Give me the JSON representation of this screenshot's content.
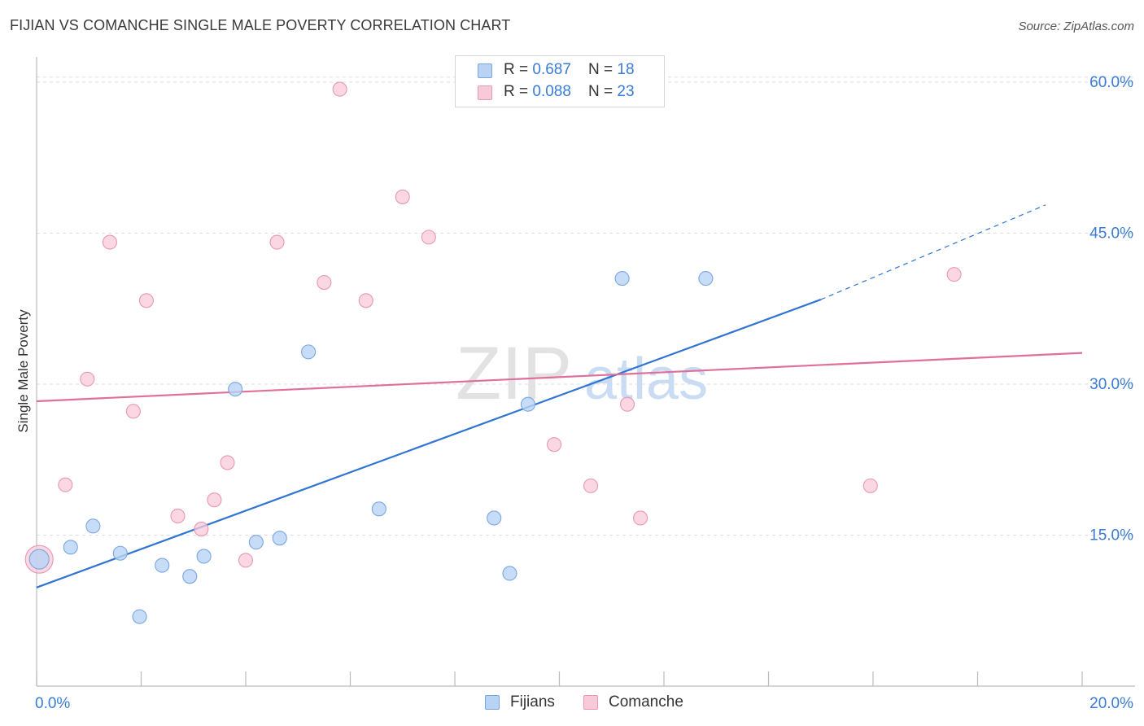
{
  "header": {
    "title": "FIJIAN VS COMANCHE SINGLE MALE POVERTY CORRELATION CHART",
    "source": "Source: ZipAtlas.com"
  },
  "legend": {
    "rows": [
      {
        "r_label": "R = ",
        "r_value": "0.687",
        "n_label": "N = ",
        "n_value": "18"
      },
      {
        "r_label": "R = ",
        "r_value": "0.088",
        "n_label": "N = ",
        "n_value": "23"
      }
    ]
  },
  "bottom_legend": {
    "items": [
      "Fijians",
      "Comanche"
    ]
  },
  "watermark": {
    "zip": "ZIP",
    "atlas": "atlas"
  },
  "colors": {
    "blue_fill": "#b9d3f5",
    "blue_stroke": "#7aa6e0",
    "blue_line": "#2f75d1",
    "pink_fill": "#f8c9d8",
    "pink_stroke": "#e898b4",
    "pink_line": "#e07099",
    "tick_label": "#3a7bd5",
    "grid": "#dddddd",
    "axis": "#bbbbbb"
  },
  "chart_data": {
    "type": "scatter",
    "title": "FIJIAN VS COMANCHE SINGLE MALE POVERTY CORRELATION CHART",
    "xlabel": "",
    "ylabel": "Single Male Poverty",
    "xlim": [
      0,
      20
    ],
    "ylim": [
      0,
      62.5
    ],
    "x_tick_labels": [
      {
        "x": 0,
        "label": "0.0%"
      },
      {
        "x": 20,
        "label": "20.0%"
      }
    ],
    "x_minor_ticks": [
      0,
      2,
      4,
      6,
      8,
      10,
      12,
      14,
      16,
      18,
      20
    ],
    "y_ticks": [
      {
        "y": 15,
        "label": "15.0%"
      },
      {
        "y": 30,
        "label": "30.0%"
      },
      {
        "y": 45,
        "label": "45.0%"
      },
      {
        "y": 60,
        "label": "60.0%"
      }
    ],
    "series": [
      {
        "name": "Fijians",
        "color": "#7aa6e0",
        "points": [
          [
            0.05,
            12.6
          ],
          [
            0.65,
            13.8
          ],
          [
            1.08,
            15.9
          ],
          [
            1.6,
            13.2
          ],
          [
            1.97,
            6.9
          ],
          [
            2.4,
            12.0
          ],
          [
            2.93,
            10.9
          ],
          [
            3.2,
            12.9
          ],
          [
            3.8,
            29.5
          ],
          [
            4.2,
            14.3
          ],
          [
            4.65,
            14.7
          ],
          [
            5.2,
            33.2
          ],
          [
            6.55,
            17.6
          ],
          [
            8.75,
            16.7
          ],
          [
            9.05,
            11.2
          ],
          [
            9.4,
            28.0
          ],
          [
            11.2,
            40.5
          ],
          [
            12.8,
            40.5
          ]
        ],
        "trend": {
          "x0": 0,
          "y0": 9.8,
          "x1": 15.0,
          "y1": 38.4,
          "dash_x1": 19.3,
          "dash_y1": 47.8
        }
      },
      {
        "name": "Comanche",
        "color": "#e898b4",
        "points": [
          [
            0.05,
            12.6
          ],
          [
            0.55,
            20.0
          ],
          [
            0.97,
            30.5
          ],
          [
            1.4,
            44.1
          ],
          [
            1.85,
            27.3
          ],
          [
            2.1,
            38.3
          ],
          [
            2.7,
            16.9
          ],
          [
            3.15,
            15.6
          ],
          [
            3.4,
            18.5
          ],
          [
            3.65,
            22.2
          ],
          [
            4.0,
            12.5
          ],
          [
            4.6,
            44.1
          ],
          [
            5.5,
            40.1
          ],
          [
            5.8,
            59.3
          ],
          [
            6.3,
            38.3
          ],
          [
            7.0,
            48.6
          ],
          [
            7.5,
            44.6
          ],
          [
            9.9,
            24.0
          ],
          [
            10.6,
            19.9
          ],
          [
            11.3,
            28.0
          ],
          [
            11.55,
            16.7
          ],
          [
            15.95,
            19.9
          ],
          [
            17.55,
            40.9
          ]
        ],
        "trend": {
          "x0": 0,
          "y0": 28.3,
          "x1": 20,
          "y1": 33.1
        }
      }
    ]
  }
}
